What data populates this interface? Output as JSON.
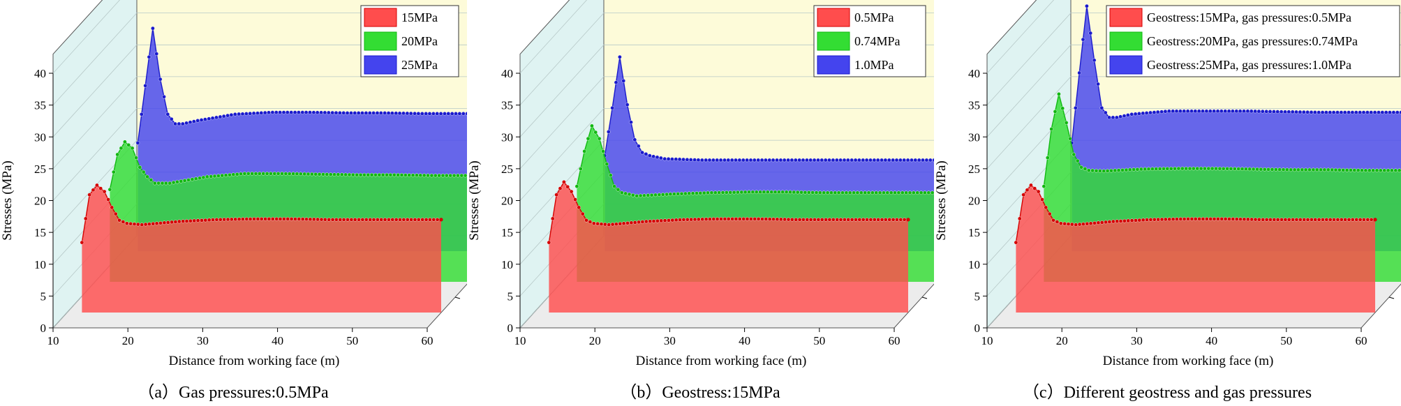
{
  "figure": {
    "panels": [
      {
        "caption": "（a）Gas pressures:0.5MPa",
        "xlabel": "Distance from working face (m)",
        "ylabel": "Stresses (MPa)",
        "legend": [
          "15MPa",
          "20MPa",
          "25MPa"
        ]
      },
      {
        "caption": "（b）Geostress:15MPa",
        "xlabel": "Distance from working face (m)",
        "ylabel": "Stresses (MPa)",
        "legend": [
          "0.5MPa",
          "0.74MPa",
          "1.0MPa"
        ]
      },
      {
        "caption": "（c）Different geostress and gas pressures",
        "xlabel": "Distance from working face (m)",
        "ylabel": "Stresses (MPa)",
        "legend": [
          "Geostress:15MPa, gas pressures:0.5MPa",
          "Geostress:20MPa, gas pressures:0.74MPa",
          "Geostress:25MPa, gas pressures:1.0MPa"
        ]
      }
    ],
    "colors": {
      "series": [
        "#ff4d4d",
        "#33dd33",
        "#4444ee"
      ],
      "dots": [
        "#d40000",
        "#12b812",
        "#1a1acc"
      ],
      "back_wall": "#fdfbd9",
      "side_wall": "#dff3f2",
      "floor": "#ececec"
    }
  },
  "chart_data": [
    {
      "type": "area",
      "projection": "3d-waterfall",
      "x": [
        12,
        13,
        14,
        15,
        16,
        17,
        18,
        20,
        25,
        30,
        35,
        40,
        45,
        50,
        55,
        60
      ],
      "xlim": [
        10,
        60
      ],
      "ylim": [
        0,
        40
      ],
      "xticks": [
        10,
        20,
        30,
        40,
        50,
        60
      ],
      "yticks": [
        0,
        5,
        10,
        15,
        20,
        25,
        30,
        35,
        40
      ],
      "series": [
        {
          "name": "15MPa",
          "values": [
            11.0,
            18.5,
            20.0,
            19.0,
            16.5,
            14.5,
            14.0,
            13.8,
            14.3,
            14.6,
            14.7,
            14.7,
            14.6,
            14.6,
            14.6,
            14.6
          ]
        },
        {
          "name": "20MPa",
          "values": [
            14.5,
            20.0,
            22.0,
            21.0,
            18.0,
            16.5,
            15.5,
            15.5,
            16.5,
            17.0,
            17.0,
            16.9,
            16.8,
            16.8,
            16.7,
            16.7
          ]
        },
        {
          "name": "25MPa",
          "values": [
            17.0,
            26.0,
            35.0,
            27.0,
            21.5,
            20.0,
            20.0,
            20.5,
            21.5,
            21.8,
            21.8,
            21.7,
            21.7,
            21.6,
            21.6,
            21.6
          ]
        }
      ],
      "grid": false,
      "legend_position": "top-right"
    },
    {
      "type": "area",
      "projection": "3d-waterfall",
      "x": [
        12,
        13,
        14,
        15,
        16,
        17,
        18,
        20,
        25,
        30,
        35,
        40,
        45,
        50,
        55,
        60
      ],
      "xlim": [
        10,
        60
      ],
      "ylim": [
        0,
        40
      ],
      "xticks": [
        10,
        20,
        30,
        40,
        50,
        60
      ],
      "yticks": [
        0,
        5,
        10,
        15,
        20,
        25,
        30,
        35,
        40
      ],
      "series": [
        {
          "name": "0.5MPa",
          "values": [
            11.0,
            18.5,
            20.5,
            19.0,
            16.5,
            14.5,
            14.0,
            13.8,
            14.3,
            14.6,
            14.7,
            14.7,
            14.6,
            14.6,
            14.6,
            14.6
          ]
        },
        {
          "name": "0.74MPa",
          "values": [
            15.0,
            20.5,
            24.5,
            22.5,
            18.5,
            15.0,
            14.0,
            13.5,
            13.8,
            14.0,
            14.1,
            14.1,
            14.0,
            14.0,
            14.0,
            14.0
          ]
        },
        {
          "name": "1.0MPa",
          "values": [
            15.0,
            22.5,
            30.5,
            23.0,
            17.5,
            15.5,
            15.0,
            14.5,
            14.3,
            14.3,
            14.3,
            14.3,
            14.3,
            14.3,
            14.3,
            14.3
          ]
        }
      ],
      "grid": false,
      "legend_position": "top-right"
    },
    {
      "type": "area",
      "projection": "3d-waterfall",
      "x": [
        12,
        13,
        14,
        15,
        16,
        17,
        18,
        20,
        25,
        30,
        35,
        40,
        45,
        50,
        55,
        60
      ],
      "xlim": [
        10,
        60
      ],
      "ylim": [
        0,
        40
      ],
      "xticks": [
        10,
        20,
        30,
        40,
        50,
        60
      ],
      "yticks": [
        0,
        5,
        10,
        15,
        20,
        25,
        30,
        35,
        40
      ],
      "series": [
        {
          "name": "Geostress:15MPa, gas pressures:0.5MPa",
          "values": [
            11.0,
            18.5,
            20.0,
            19.0,
            16.5,
            14.5,
            14.0,
            13.8,
            14.3,
            14.6,
            14.7,
            14.7,
            14.6,
            14.6,
            14.6,
            14.6
          ]
        },
        {
          "name": "Geostress:20MPa, gas pressures:0.74MPa",
          "values": [
            15.0,
            24.0,
            29.5,
            25.0,
            20.0,
            18.0,
            17.5,
            17.4,
            17.7,
            17.8,
            17.8,
            17.7,
            17.6,
            17.6,
            17.5,
            17.5
          ]
        },
        {
          "name": "Geostress:25MPa, gas pressures:1.0MPa",
          "values": [
            17.0,
            28.0,
            38.5,
            30.0,
            22.5,
            21.0,
            21.0,
            21.5,
            22.0,
            22.0,
            22.0,
            21.9,
            21.8,
            21.8,
            21.8,
            21.8
          ]
        }
      ],
      "grid": false,
      "legend_position": "top-right"
    }
  ]
}
